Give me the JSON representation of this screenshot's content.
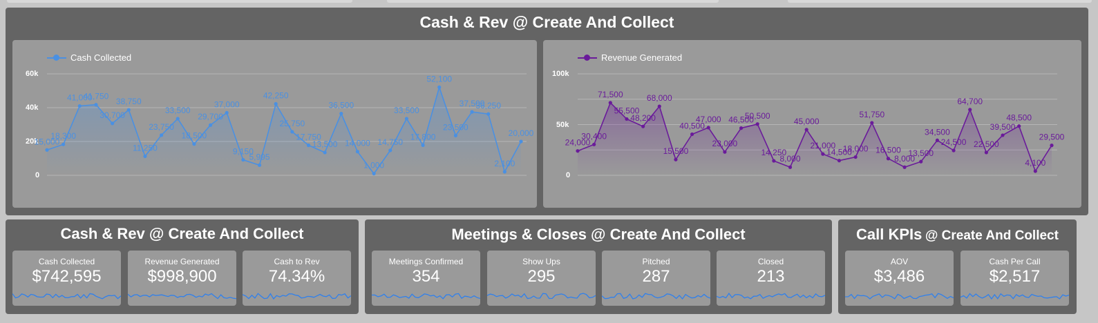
{
  "main_panel": {
    "title": "Cash & Rev @ Create And Collect"
  },
  "cash_chart": {
    "legend": "Cash Collected",
    "color": "#4a90e2",
    "y_ticks": [
      "60k",
      "40k",
      "20k",
      "0"
    ]
  },
  "rev_chart": {
    "legend": "Revenue Generated",
    "color": "#6a1b9a",
    "y_ticks": [
      "100k",
      "50k",
      "0"
    ]
  },
  "chart_data": [
    {
      "type": "line",
      "ylim": [
        0,
        60000
      ],
      "grid": true,
      "legend_position": "top-left",
      "series": [
        {
          "name": "Cash Collected",
          "values": [
            15000,
            18300,
            41000,
            41750,
            30700,
            38750,
            11250,
            23750,
            33500,
            18500,
            29700,
            37000,
            9150,
            5995,
            42250,
            25750,
            17750,
            13500,
            36500,
            14000,
            1000,
            14750,
            33500,
            17800,
            52100,
            23500,
            37500,
            36250,
            2100,
            20000
          ],
          "labels": [
            "15,000",
            "18,300",
            "41,000",
            "41,750",
            "30,700",
            "38,750",
            "11,250",
            "23,750",
            "33,500",
            "18,500",
            "29,700",
            "37,000",
            "9,150",
            "5,995",
            "42,250",
            "25,750",
            "17,750",
            "13,500",
            "36,500",
            "14,000",
            "1,000",
            "14,750",
            "33,500",
            "17,800",
            "52,100",
            "23,500",
            "37,500",
            "36,250",
            "2,100",
            "20,000"
          ]
        }
      ]
    },
    {
      "type": "line",
      "ylim": [
        0,
        100000
      ],
      "grid": true,
      "legend_position": "top-left",
      "series": [
        {
          "name": "Revenue Generated",
          "values": [
            24000,
            30400,
            71500,
            55500,
            48200,
            68000,
            15500,
            40500,
            47000,
            23000,
            46500,
            50500,
            14250,
            8000,
            45000,
            21000,
            14500,
            18000,
            51750,
            16500,
            8000,
            13500,
            34500,
            24500,
            64700,
            22500,
            39500,
            48500,
            4100,
            29500
          ],
          "labels": [
            "24,000",
            "30,400",
            "71,500",
            "55,500",
            "48,200",
            "68,000",
            "15,500",
            "40,500",
            "47,000",
            "23,000",
            "46,500",
            "50,500",
            "14,250",
            "8,000",
            "45,000",
            "21,000",
            "14,500",
            "18,000",
            "51,750",
            "16,500",
            "8,000",
            "13,500",
            "34,500",
            "24,500",
            "64,700",
            "22,500",
            "39,500",
            "48,500",
            "4,100",
            "29,500"
          ]
        }
      ]
    }
  ],
  "panels": {
    "cash_rev": {
      "title": "Cash & Rev @ Create And Collect"
    },
    "meetings": {
      "title": "Meetings & Closes @ Create And Collect"
    },
    "call_kpis": {
      "title_main": "Call KPIs",
      "title_sub": "@ Create And Collect"
    }
  },
  "kpis": {
    "cash_collected": {
      "label": "Cash Collected",
      "value": "$742,595"
    },
    "revenue_generated": {
      "label": "Revenue Generated",
      "value": "$998,900"
    },
    "cash_to_rev": {
      "label": "Cash to Rev",
      "value": "74.34%"
    },
    "meetings_confirmed": {
      "label": "Meetings Confirmed",
      "value": "354"
    },
    "show_ups": {
      "label": "Show Ups",
      "value": "295"
    },
    "pitched": {
      "label": "Pitched",
      "value": "287"
    },
    "closed": {
      "label": "Closed",
      "value": "213"
    },
    "aov": {
      "label": "AOV",
      "value": "$3,486"
    },
    "cash_per_call": {
      "label": "Cash Per Call",
      "value": "$2,517"
    }
  },
  "sparkline_color": "#2f80ed"
}
